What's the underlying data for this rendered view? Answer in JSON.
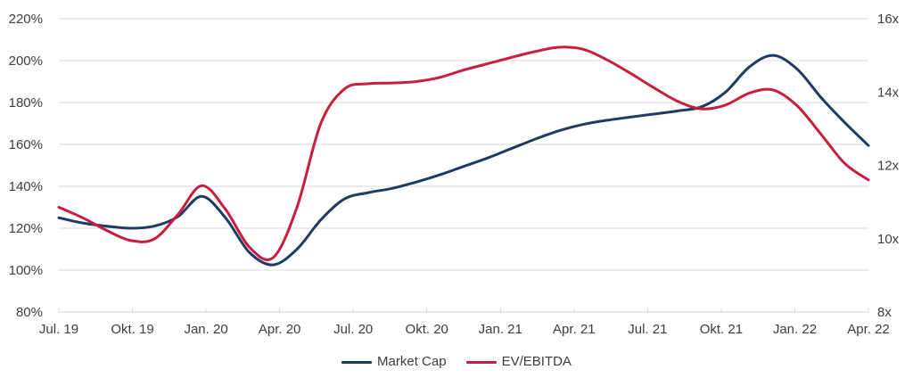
{
  "chart_data": {
    "type": "line",
    "title": "",
    "x_tick_labels": [
      "Jul. 19",
      "Okt. 19",
      "Jan. 20",
      "Apr. 20",
      "Jul. 20",
      "Okt. 20",
      "Jan. 21",
      "Apr. 21",
      "Jul. 21",
      "Okt. 21",
      "Jan. 22",
      "Apr. 22"
    ],
    "x_interval": "monthly",
    "x_start": "Jul. 19",
    "x_end": "Mai 22",
    "points_per_tick": 3,
    "grid": "horizontal",
    "gridline_color": "#d9d9d9",
    "label_color": "#3d3d3d",
    "legend_position": "bottom-center",
    "left_axis": {
      "unit": "%",
      "min": 80,
      "max": 220,
      "step": 20,
      "tick_labels": [
        "220%",
        "200%",
        "180%",
        "160%",
        "140%",
        "120%",
        "100%",
        "80%"
      ]
    },
    "right_axis": {
      "unit": "x",
      "min": 8,
      "max": 16,
      "step": 2,
      "tick_labels": [
        "16x",
        "14x",
        "12x",
        "10x",
        "8x"
      ]
    },
    "series": [
      {
        "name": "Market Cap",
        "color": "#1f3a64",
        "axis": "left",
        "values_percent": [
          125,
          122.5,
          121,
          120,
          121,
          125.5,
          135.2,
          125,
          108.5,
          102.5,
          110,
          124,
          134,
          137,
          139,
          142,
          145.5,
          149.5,
          153.5,
          158,
          162.5,
          166.5,
          169.5,
          171.5,
          173,
          174.5,
          176,
          178,
          185,
          197,
          202.5,
          196,
          182.5,
          170.5,
          159.5
        ]
      },
      {
        "name": "EV/EBITDA",
        "color": "#c81e3c",
        "axis": "right",
        "values_percent": [
          130,
          125,
          119,
          114.2,
          114.8,
          126.5,
          140.3,
          129,
          111,
          106,
          130,
          170,
          186.5,
          189,
          189.3,
          190,
          192,
          195.5,
          198.5,
          201.5,
          204.3,
          206.4,
          205.5,
          200.5,
          194,
          187,
          180.5,
          177,
          178.8,
          184.5,
          186,
          178.5,
          165,
          151,
          143
        ],
        "values_multiple": [
          10.9,
          10.6,
          10.2,
          10.0,
          10.0,
          10.7,
          11.4,
          10.8,
          9.8,
          9.5,
          10.9,
          13.1,
          14.1,
          14.2,
          14.2,
          14.3,
          14.4,
          14.6,
          14.8,
          14.9,
          15.1,
          15.2,
          15.2,
          14.9,
          14.5,
          14.1,
          13.7,
          13.5,
          13.6,
          14.0,
          14.1,
          13.6,
          12.9,
          12.1,
          11.6
        ]
      }
    ]
  },
  "legend": {
    "items": [
      {
        "label": "Market Cap"
      },
      {
        "label": "EV/EBITDA"
      }
    ]
  }
}
